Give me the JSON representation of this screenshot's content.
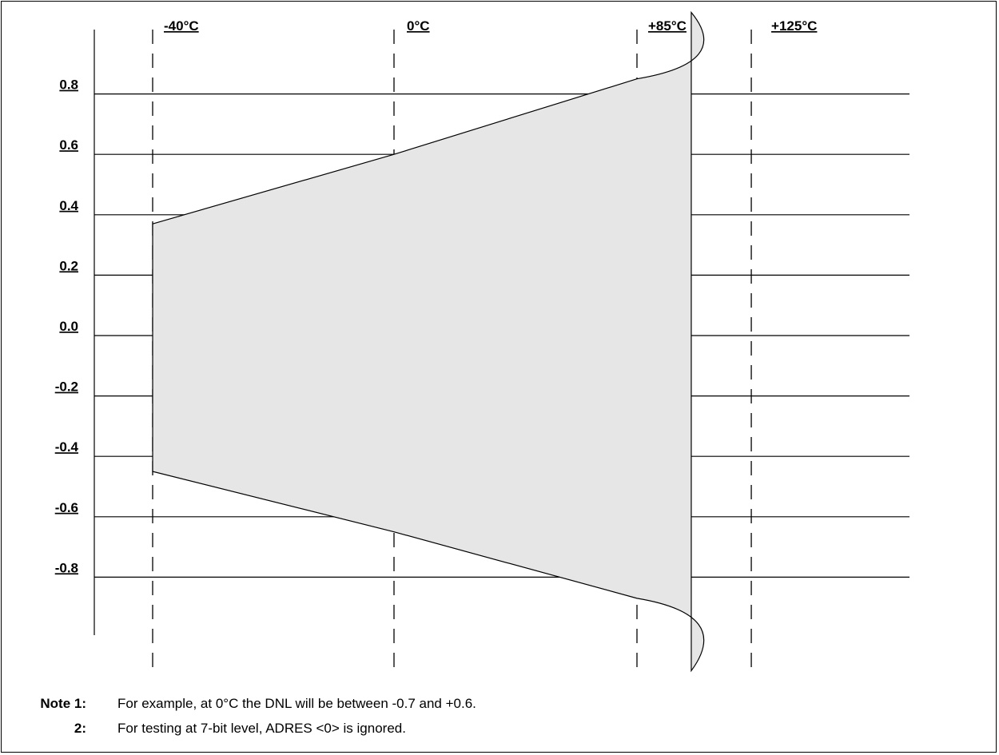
{
  "chart_data": {
    "type": "area",
    "x": [
      -40,
      0,
      85,
      125
    ],
    "x_tick_labels": [
      "-40°C",
      "0°C",
      "+85°C",
      "+125°C"
    ],
    "y_tick_values": [
      0.8,
      0.6,
      0.4,
      0.2,
      0.0,
      -0.2,
      -0.4,
      -0.6,
      -0.8
    ],
    "y_tick_labels": [
      "0.8",
      "0.6",
      "0.4",
      "0.2",
      "0.0",
      "-0.2",
      "-0.4",
      "-0.6",
      "-0.8"
    ],
    "ylim": [
      -1.0,
      1.1
    ],
    "series": [
      {
        "upper": [
          {
            "x": -40,
            "y": 0.37
          },
          {
            "x": 0,
            "y": 0.6
          },
          {
            "x": 85,
            "y": 0.85
          },
          {
            "x": 104,
            "y": 1.07
          }
        ],
        "lower": [
          {
            "x": -40,
            "y": -0.45
          },
          {
            "x": 0,
            "y": -0.65
          },
          {
            "x": 85,
            "y": -0.87
          },
          {
            "x": 104,
            "y": -1.11
          }
        ]
      }
    ],
    "grid": true,
    "fill_color": "#e6e6e6",
    "line_color": "#000000"
  },
  "notes": [
    {
      "tag": "Note  1:",
      "text": "For example, at 0°C the DNL will be between -0.7 and +0.6."
    },
    {
      "tag": "2:",
      "text": "For testing at 7-bit level, ADRES <0> is ignored."
    }
  ]
}
